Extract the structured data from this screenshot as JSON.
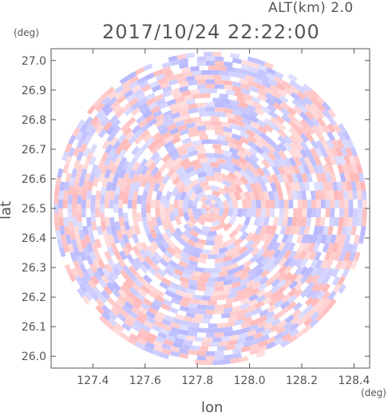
{
  "header": {
    "alt_label": "ALT(km) 2.0",
    "time_label": "2017/10/24 22:22:00",
    "unit_top": "(deg)",
    "unit_right": "(deg)"
  },
  "chart_data": {
    "type": "heatmap",
    "title": "2017/10/24 22:22:00",
    "subtitle": "ALT(km) 2.0",
    "xlabel": "lon",
    "ylabel": "lat",
    "x_unit": "(deg)",
    "y_unit": "(deg)",
    "xlim": [
      127.24,
      128.46
    ],
    "ylim": [
      25.96,
      27.04
    ],
    "xticks": [
      127.4,
      127.6,
      127.8,
      128.0,
      128.2,
      128.4
    ],
    "yticks": [
      26.0,
      26.1,
      26.2,
      26.3,
      26.4,
      26.5,
      26.6,
      26.7,
      26.8,
      26.9,
      27.0
    ],
    "center": [
      127.85,
      26.5
    ],
    "radius_deg": 0.53,
    "colors": {
      "positive": "#ff9a9a",
      "negative": "#9a9aff",
      "neutral": "#ffffff",
      "axis": "#555555"
    },
    "grid": false,
    "legend": "none"
  },
  "axes": {
    "xlabel": "lon",
    "ylabel": "lat"
  }
}
